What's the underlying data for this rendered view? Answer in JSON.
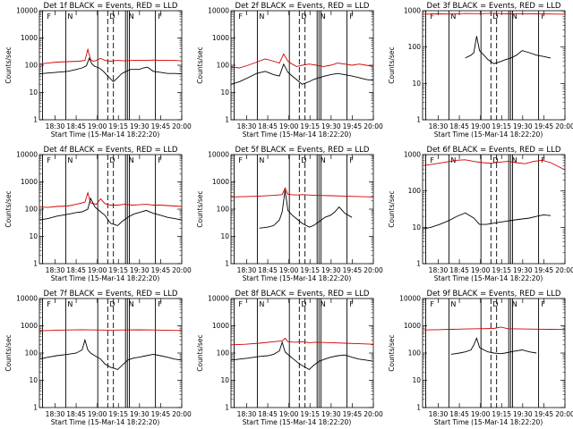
{
  "chart_data": [
    {
      "type": "line",
      "title": "Det 1f BLACK = Events, RED = LLD",
      "xlabel": "Start Time (15-Mar-14 18:22:20)",
      "ylabel": "Counts/sec",
      "yscale": "log",
      "ylim": [
        1,
        10000
      ],
      "x_ticks": [
        "18:30",
        "18:45",
        "19:00",
        "19:15",
        "19:30",
        "19:45",
        "20:00"
      ],
      "y_ticks": [
        "1",
        "10",
        "100",
        "1000",
        "10000"
      ],
      "marks": [
        "F",
        "N",
        "D",
        "N",
        "F"
      ],
      "series": [
        {
          "color": "#d00000",
          "x": [
            0.0,
            0.06,
            0.12,
            0.2,
            0.28,
            0.32,
            0.34,
            0.36,
            0.38,
            0.4,
            0.43,
            0.46,
            0.5,
            0.55,
            0.6,
            0.65,
            0.7,
            0.75,
            0.8,
            0.85,
            0.9,
            0.95,
            1.0
          ],
          "y": [
            110,
            120,
            130,
            135,
            140,
            150,
            380,
            160,
            140,
            150,
            180,
            150,
            140,
            150,
            145,
            150,
            150,
            150,
            155,
            150,
            150,
            150,
            145
          ]
        },
        {
          "color": "#000000",
          "x": [
            0.0,
            0.06,
            0.12,
            0.2,
            0.26,
            0.3,
            0.33,
            0.35,
            0.37,
            0.39,
            0.42,
            0.45,
            0.48,
            0.52,
            0.55,
            0.58,
            0.61,
            0.64,
            0.66,
            0.7,
            0.73,
            0.76,
            0.8,
            0.85,
            0.9,
            0.95,
            1.0
          ],
          "y": [
            48,
            52,
            55,
            60,
            70,
            80,
            95,
            180,
            110,
            90,
            80,
            60,
            40,
            25,
            35,
            50,
            60,
            70,
            70,
            70,
            80,
            85,
            60,
            55,
            50,
            50,
            48
          ]
        }
      ]
    },
    {
      "type": "line",
      "title": "Det 2f BLACK = Events, RED = LLD",
      "xlabel": "Start Time (15-Mar-14 18:22:20)",
      "ylabel": "Counts/sec",
      "yscale": "log",
      "ylim": [
        1,
        10000
      ],
      "x_ticks": [
        "18:30",
        "18:45",
        "19:00",
        "19:15",
        "19:30",
        "19:45",
        "20:00"
      ],
      "y_ticks": [
        "1",
        "10",
        "100",
        "1000",
        "10000"
      ],
      "marks": [
        "F",
        "N",
        "D",
        "N",
        "F"
      ],
      "series": [
        {
          "color": "#d00000",
          "x": [
            0.0,
            0.06,
            0.12,
            0.18,
            0.24,
            0.3,
            0.34,
            0.37,
            0.4,
            0.43,
            0.46,
            0.5,
            0.55,
            0.6,
            0.65,
            0.7,
            0.75,
            0.8,
            0.85,
            0.9,
            0.95,
            1.0
          ],
          "y": [
            85,
            80,
            100,
            130,
            170,
            140,
            120,
            260,
            140,
            110,
            90,
            100,
            110,
            100,
            90,
            100,
            120,
            110,
            100,
            110,
            100,
            90
          ]
        },
        {
          "color": "#000000",
          "x": [
            0.0,
            0.06,
            0.12,
            0.18,
            0.24,
            0.3,
            0.34,
            0.37,
            0.4,
            0.43,
            0.46,
            0.5,
            0.55,
            0.58,
            0.62,
            0.66,
            0.7,
            0.75,
            0.8,
            0.85,
            0.9,
            0.95,
            1.0
          ],
          "y": [
            20,
            25,
            35,
            50,
            60,
            45,
            40,
            110,
            55,
            40,
            30,
            20,
            25,
            30,
            35,
            40,
            45,
            50,
            45,
            40,
            35,
            30,
            28
          ]
        }
      ]
    },
    {
      "type": "line",
      "title": "Det 3f BLACK = Events, RED = LLD",
      "xlabel": "Start Time (15-Mar-14 18:22:20)",
      "ylabel": "Counts/sec",
      "yscale": "log",
      "ylim": [
        1,
        1000
      ],
      "x_ticks": [
        "18:30",
        "18:45",
        "19:00",
        "19:15",
        "19:30",
        "19:45",
        "20:00"
      ],
      "y_ticks": [
        "1",
        "10",
        "100",
        "1000"
      ],
      "marks": [
        "F",
        "N",
        "D",
        "N",
        "F"
      ],
      "series": [
        {
          "color": "#d00000",
          "x": [
            0.0,
            0.1,
            0.2,
            0.3,
            0.4,
            0.5,
            0.6,
            0.7,
            0.8,
            0.9,
            1.0
          ],
          "y": [
            800,
            820,
            810,
            840,
            830,
            850,
            820,
            830,
            820,
            810,
            800
          ]
        },
        {
          "color": "#000000",
          "x": [
            0.3,
            0.34,
            0.36,
            0.38,
            0.4,
            0.43,
            0.46,
            0.5,
            0.55,
            0.58,
            0.62,
            0.66,
            0.7,
            0.75,
            0.8,
            0.85,
            0.9
          ],
          "y": [
            50,
            60,
            70,
            200,
            80,
            60,
            45,
            35,
            40,
            45,
            50,
            60,
            80,
            70,
            60,
            55,
            50
          ]
        }
      ]
    },
    {
      "type": "line",
      "title": "Det 4f BLACK = Events, RED = LLD",
      "xlabel": "Start Time (15-Mar-14 18:22:20)",
      "ylabel": "Counts/sec",
      "yscale": "log",
      "ylim": [
        1,
        10000
      ],
      "x_ticks": [
        "18:30",
        "18:45",
        "19:00",
        "19:15",
        "19:30",
        "19:45",
        "20:00"
      ],
      "y_ticks": [
        "1",
        "10",
        "100",
        "1000",
        "10000"
      ],
      "marks": [
        "F",
        "N",
        "D",
        "N",
        "F"
      ],
      "series": [
        {
          "color": "#d00000",
          "x": [
            0.0,
            0.06,
            0.12,
            0.2,
            0.26,
            0.32,
            0.34,
            0.36,
            0.4,
            0.43,
            0.46,
            0.5,
            0.55,
            0.6,
            0.65,
            0.7,
            0.75,
            0.8,
            0.85,
            0.9,
            0.95,
            1.0
          ],
          "y": [
            120,
            115,
            125,
            130,
            150,
            180,
            400,
            170,
            150,
            240,
            160,
            140,
            140,
            150,
            140,
            145,
            150,
            140,
            140,
            135,
            130,
            125
          ]
        },
        {
          "color": "#000000",
          "x": [
            0.0,
            0.06,
            0.12,
            0.2,
            0.26,
            0.3,
            0.34,
            0.36,
            0.39,
            0.43,
            0.46,
            0.5,
            0.55,
            0.58,
            0.62,
            0.66,
            0.7,
            0.75,
            0.8,
            0.85,
            0.9,
            0.95,
            1.0
          ],
          "y": [
            40,
            45,
            55,
            65,
            75,
            80,
            100,
            250,
            120,
            80,
            60,
            30,
            25,
            35,
            50,
            65,
            75,
            90,
            70,
            60,
            50,
            45,
            40
          ]
        }
      ]
    },
    {
      "type": "line",
      "title": "Det 5f BLACK = Events, RED = LLD",
      "xlabel": "Start Time (15-Mar-14 18:22:20)",
      "ylabel": "Counts/sec",
      "yscale": "log",
      "ylim": [
        1,
        10000
      ],
      "x_ticks": [
        "18:30",
        "18:45",
        "19:00",
        "19:15",
        "19:30",
        "19:45",
        "20:00"
      ],
      "y_ticks": [
        "1",
        "10",
        "100",
        "1000",
        "10000"
      ],
      "marks": [
        "F",
        "N",
        "D",
        "N",
        "F"
      ],
      "series": [
        {
          "color": "#d00000",
          "x": [
            0.0,
            0.1,
            0.2,
            0.3,
            0.36,
            0.38,
            0.4,
            0.45,
            0.5,
            0.55,
            0.6,
            0.7,
            0.8,
            0.9,
            1.0
          ],
          "y": [
            280,
            290,
            300,
            320,
            340,
            600,
            350,
            330,
            340,
            330,
            320,
            310,
            300,
            290,
            280
          ]
        },
        {
          "color": "#000000",
          "x": [
            0.2,
            0.26,
            0.3,
            0.34,
            0.36,
            0.38,
            0.4,
            0.43,
            0.46,
            0.5,
            0.55,
            0.58,
            0.62,
            0.66,
            0.7,
            0.73,
            0.76,
            0.8,
            0.85
          ],
          "y": [
            20,
            22,
            25,
            40,
            80,
            500,
            90,
            60,
            45,
            30,
            22,
            25,
            35,
            50,
            60,
            80,
            120,
            70,
            50
          ]
        }
      ]
    },
    {
      "type": "line",
      "title": "Det 6f BLACK = Events, RED = LLD",
      "xlabel": "Start Time (15-Mar-14 18:22:20)",
      "ylabel": "Counts/sec",
      "yscale": "log",
      "ylim": [
        1,
        1000
      ],
      "x_ticks": [
        "18:30",
        "18:45",
        "19:00",
        "19:15",
        "19:30",
        "19:45",
        "20:00"
      ],
      "y_ticks": [
        "1",
        "10",
        "100",
        "1000"
      ],
      "marks": [
        "F",
        "N",
        "D",
        "N",
        "F"
      ],
      "series": [
        {
          "color": "#d00000",
          "x": [
            0.0,
            0.08,
            0.16,
            0.24,
            0.3,
            0.36,
            0.42,
            0.48,
            0.54,
            0.6,
            0.66,
            0.72,
            0.78,
            0.84,
            0.9,
            0.95,
            1.0
          ],
          "y": [
            500,
            550,
            620,
            700,
            720,
            650,
            600,
            580,
            620,
            650,
            600,
            560,
            650,
            700,
            600,
            480,
            380
          ]
        },
        {
          "color": "#000000",
          "x": [
            0.0,
            0.06,
            0.12,
            0.18,
            0.24,
            0.3,
            0.36,
            0.4,
            0.45,
            0.5,
            0.55,
            0.6,
            0.65,
            0.7,
            0.75,
            0.8,
            0.85,
            0.9
          ],
          "y": [
            9,
            10,
            12,
            15,
            20,
            25,
            18,
            12,
            12,
            13,
            14,
            15,
            16,
            17,
            18,
            20,
            22,
            21
          ]
        }
      ]
    },
    {
      "type": "line",
      "title": "Det 7f BLACK = Events, RED = LLD",
      "xlabel": "Start Time (15-Mar-14 18:22:20)",
      "ylabel": "Counts/sec",
      "yscale": "log",
      "ylim": [
        1,
        10000
      ],
      "x_ticks": [
        "18:30",
        "18:45",
        "19:00",
        "19:15",
        "19:30",
        "19:45",
        "20:00"
      ],
      "y_ticks": [
        "1",
        "10",
        "100",
        "1000",
        "10000"
      ],
      "marks": [
        "F",
        "N",
        "D",
        "N",
        "F"
      ],
      "series": [
        {
          "color": "#d00000",
          "x": [
            0.0,
            0.1,
            0.2,
            0.3,
            0.4,
            0.5,
            0.6,
            0.7,
            0.8,
            0.9,
            1.0
          ],
          "y": [
            650,
            680,
            700,
            720,
            700,
            690,
            700,
            710,
            700,
            680,
            670
          ]
        },
        {
          "color": "#000000",
          "x": [
            0.0,
            0.06,
            0.12,
            0.2,
            0.26,
            0.3,
            0.32,
            0.34,
            0.36,
            0.39,
            0.43,
            0.46,
            0.5,
            0.55,
            0.58,
            0.62,
            0.66,
            0.7,
            0.75,
            0.8,
            0.85,
            0.9,
            0.95,
            1.0
          ],
          "y": [
            60,
            70,
            80,
            90,
            100,
            130,
            300,
            130,
            100,
            80,
            60,
            40,
            30,
            25,
            35,
            55,
            65,
            70,
            80,
            90,
            80,
            70,
            60,
            55
          ]
        }
      ]
    },
    {
      "type": "line",
      "title": "Det 8f BLACK = Events, RED = LLD",
      "xlabel": "Start Time (15-Mar-14 18:22:20)",
      "ylabel": "Counts/sec",
      "yscale": "log",
      "ylim": [
        1,
        10000
      ],
      "x_ticks": [
        "18:30",
        "18:45",
        "19:00",
        "19:15",
        "19:30",
        "19:45",
        "20:00"
      ],
      "y_ticks": [
        "1",
        "10",
        "100",
        "1000",
        "10000"
      ],
      "marks": [
        "F",
        "N",
        "D",
        "N",
        "F"
      ],
      "series": [
        {
          "color": "#d00000",
          "x": [
            0.0,
            0.1,
            0.2,
            0.3,
            0.36,
            0.38,
            0.4,
            0.45,
            0.5,
            0.55,
            0.6,
            0.7,
            0.8,
            0.9,
            1.0
          ],
          "y": [
            200,
            210,
            230,
            260,
            280,
            350,
            260,
            250,
            260,
            240,
            250,
            240,
            230,
            220,
            210
          ]
        },
        {
          "color": "#000000",
          "x": [
            0.0,
            0.06,
            0.12,
            0.2,
            0.26,
            0.3,
            0.34,
            0.36,
            0.38,
            0.41,
            0.44,
            0.48,
            0.52,
            0.55,
            0.58,
            0.62,
            0.66,
            0.7,
            0.75,
            0.8,
            0.85,
            0.9,
            0.95,
            1.0
          ],
          "y": [
            55,
            60,
            65,
            75,
            80,
            90,
            120,
            250,
            110,
            80,
            60,
            40,
            30,
            25,
            35,
            50,
            60,
            70,
            80,
            85,
            70,
            60,
            55,
            50
          ]
        }
      ]
    },
    {
      "type": "line",
      "title": "Det 9f BLACK = Events, RED = LLD",
      "xlabel": "Start Time (15-Mar-14 18:22:20)",
      "ylabel": "Counts/sec",
      "yscale": "log",
      "ylim": [
        1,
        10000
      ],
      "x_ticks": [
        "18:30",
        "18:45",
        "19:00",
        "19:15",
        "19:30",
        "19:45",
        "20:00"
      ],
      "y_ticks": [
        "1",
        "10",
        "100",
        "1000",
        "10000"
      ],
      "marks": [
        "F",
        "N",
        "D",
        "N",
        "F"
      ],
      "series": [
        {
          "color": "#d00000",
          "x": [
            0.0,
            0.1,
            0.2,
            0.3,
            0.4,
            0.5,
            0.55,
            0.6,
            0.7,
            0.8,
            0.9,
            1.0
          ],
          "y": [
            700,
            720,
            740,
            760,
            780,
            800,
            900,
            780,
            760,
            750,
            740,
            730
          ]
        },
        {
          "color": "#000000",
          "x": [
            0.2,
            0.26,
            0.3,
            0.34,
            0.36,
            0.38,
            0.4,
            0.43,
            0.46,
            0.5,
            0.55,
            0.58,
            0.62,
            0.66,
            0.7,
            0.75,
            0.8
          ],
          "y": [
            90,
            100,
            110,
            130,
            200,
            350,
            160,
            130,
            110,
            100,
            95,
            100,
            110,
            120,
            130,
            110,
            100
          ]
        }
      ]
    }
  ]
}
